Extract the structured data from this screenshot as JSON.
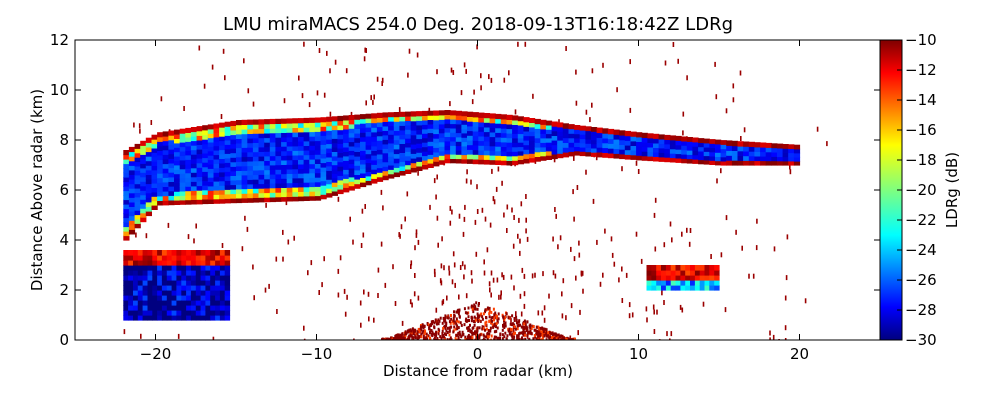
{
  "chart_data": {
    "type": "heatmap",
    "title": "LMU miraMACS 254.0 Deg. 2018-09-13T16:18:42Z  LDRg",
    "xlabel": "Distance from radar (km)",
    "ylabel": "Distance Above radar  (km)",
    "xlim": [
      -25,
      25
    ],
    "ylim": [
      0,
      12
    ],
    "x_ticks": [
      -20,
      -10,
      0,
      10,
      20
    ],
    "x_tick_labels": [
      "−20",
      "−10",
      "0",
      "10",
      "20"
    ],
    "y_ticks": [
      0,
      2,
      4,
      6,
      8,
      10,
      12
    ],
    "y_tick_labels": [
      "0",
      "2",
      "4",
      "6",
      "8",
      "10",
      "12"
    ],
    "grid": false,
    "colorbar": {
      "label": "LDRg (dB)",
      "colormap": "jet",
      "range": [
        -30,
        -10
      ],
      "ticks": [
        -10,
        -12,
        -14,
        -16,
        -18,
        -20,
        -22,
        -24,
        -26,
        -28,
        -30
      ],
      "tick_labels": [
        "−10",
        "−12",
        "−14",
        "−16",
        "−18",
        "−20",
        "−22",
        "−24",
        "−26",
        "−28",
        "−30"
      ]
    },
    "features": [
      {
        "name": "cloud-layer",
        "x": [
          -22,
          -20,
          -15,
          -10,
          -6,
          -2,
          2,
          6,
          10,
          15,
          20
        ],
        "top": [
          7.6,
          8.3,
          8.8,
          8.9,
          9.1,
          9.2,
          9.0,
          8.6,
          8.3,
          8.0,
          7.8
        ],
        "base": [
          4.0,
          5.4,
          5.5,
          5.6,
          6.4,
          7.1,
          7.0,
          7.4,
          7.2,
          7.0,
          7.0
        ],
        "value": -27
      },
      {
        "name": "lower-left-echo",
        "x": [
          -22,
          -15.5
        ],
        "top": 3.5,
        "base": 0.8,
        "value": -29
      },
      {
        "name": "surface-clutter",
        "x": [
          -6,
          6
        ],
        "peak": 1.6,
        "value": -10
      },
      {
        "name": "small-echo-right",
        "x": [
          10.5,
          15
        ],
        "top": 3.0,
        "base": 2.0,
        "value": -24
      }
    ]
  }
}
